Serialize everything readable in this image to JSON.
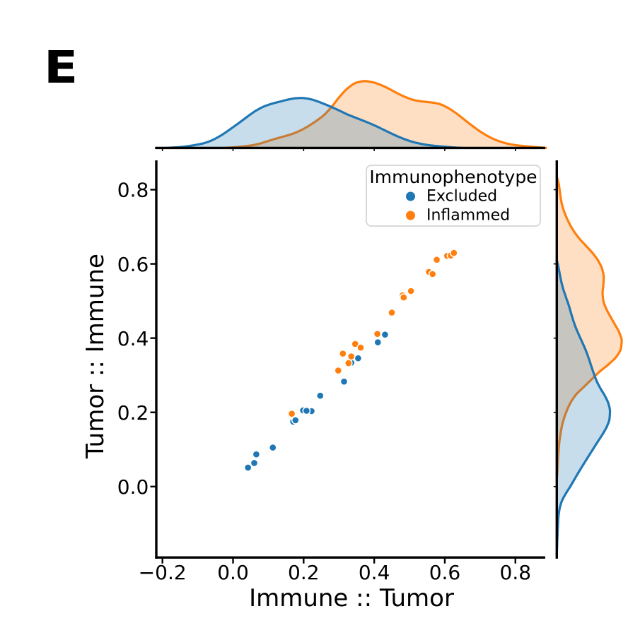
{
  "panel_label": "E",
  "colors": {
    "excluded": "#1f77b4",
    "inflammed": "#ff7f0e",
    "axis": "#000000",
    "fill_opacity": 0.25,
    "legend_border": "#d9d9d9",
    "legend_background": "#ffffff",
    "background": "#ffffff",
    "text": "#000000"
  },
  "chart_data": {
    "type": "scatter",
    "subtype": "jointplot_scatter_with_marginal_kde",
    "xlabel": "Immune :: Tumor",
    "ylabel": "Tumor :: Immune",
    "xlim": [
      -0.2174,
      0.8846
    ],
    "ylim": [
      -0.1911,
      0.879
    ],
    "x_ticks": [
      -0.2,
      0.0,
      0.2,
      0.4,
      0.6,
      0.8
    ],
    "x_tick_labels": [
      "−0.2",
      "0.0",
      "0.2",
      "0.4",
      "0.6",
      "0.8"
    ],
    "y_ticks": [
      0.0,
      0.2,
      0.4,
      0.6,
      0.8
    ],
    "y_tick_labels": [
      "0.0",
      "0.2",
      "0.4",
      "0.6",
      "0.8"
    ],
    "grid": false,
    "legend": {
      "title": "Immunophenotype",
      "position": "upper right",
      "items": [
        {
          "label": "Excluded",
          "color": "#1f77b4"
        },
        {
          "label": "Inflammed",
          "color": "#ff7f0e"
        }
      ]
    },
    "series": [
      {
        "name": "Excluded",
        "color": "#1f77b4",
        "points": [
          [
            0.0425,
            0.0512
          ],
          [
            0.0601,
            0.0636
          ],
          [
            0.0659,
            0.0868
          ],
          [
            0.1128,
            0.1051
          ],
          [
            0.1705,
            0.1749
          ],
          [
            0.1769,
            0.1787
          ],
          [
            0.1986,
            0.2054
          ],
          [
            0.2224,
            0.2033
          ],
          [
            0.2082,
            0.2043
          ],
          [
            0.2471,
            0.2448
          ],
          [
            0.3146,
            0.2829
          ],
          [
            0.3352,
            0.3336
          ],
          [
            0.3544,
            0.3457
          ],
          [
            0.4103,
            0.3886
          ],
          [
            0.4306,
            0.4095
          ]
        ]
      },
      {
        "name": "Inflammed",
        "color": "#ff7f0e",
        "points": [
          [
            0.1665,
            0.1962
          ],
          [
            0.2982,
            0.3125
          ],
          [
            0.3112,
            0.3582
          ],
          [
            0.3272,
            0.3326
          ],
          [
            0.3351,
            0.3506
          ],
          [
            0.3461,
            0.3843
          ],
          [
            0.3617,
            0.3744
          ],
          [
            0.4089,
            0.4113
          ],
          [
            0.4498,
            0.4687
          ],
          [
            0.4806,
            0.5152
          ],
          [
            0.4834,
            0.5095
          ],
          [
            0.5041,
            0.5268
          ],
          [
            0.5551,
            0.5782
          ],
          [
            0.5654,
            0.5725
          ],
          [
            0.5772,
            0.6111
          ],
          [
            0.6066,
            0.6216
          ],
          [
            0.6172,
            0.6227
          ],
          [
            0.6257,
            0.6294
          ]
        ]
      }
    ],
    "marginal_density": {
      "note": "kernel density estimate curves shown in the marginal panels; first value = position in display px, second = density height in display px",
      "top": {
        "excluded": [
          [
            235,
            0.0
          ],
          [
            246,
            0.6
          ],
          [
            256,
            1.3
          ],
          [
            267,
            2.7
          ],
          [
            278,
            4.5
          ],
          [
            288,
            6.6
          ],
          [
            299,
            10.5
          ],
          [
            310,
            16.2
          ],
          [
            321,
            23.3
          ],
          [
            331,
            30.4
          ],
          [
            342,
            38.4
          ],
          [
            353,
            46.7
          ],
          [
            363,
            53.4
          ],
          [
            374,
            59.0
          ],
          [
            385,
            62.7
          ],
          [
            395,
            65.3
          ],
          [
            406,
            68.1
          ],
          [
            417,
            70.2
          ],
          [
            427,
            70.7
          ],
          [
            438,
            69.2
          ],
          [
            449,
            65.9
          ],
          [
            460,
            61.6
          ],
          [
            470,
            57.4
          ],
          [
            481,
            52.3
          ],
          [
            492,
            47.1
          ],
          [
            502,
            43.1
          ],
          [
            513,
            38.8
          ],
          [
            524,
            34.3
          ],
          [
            534,
            29.8
          ],
          [
            545,
            24.5
          ],
          [
            556,
            19.2
          ],
          [
            566,
            14.8
          ],
          [
            577,
            10.6
          ],
          [
            588,
            7.4
          ],
          [
            599,
            5.1
          ],
          [
            609,
            3.6
          ],
          [
            620,
            2.4
          ],
          [
            631,
            1.5
          ],
          [
            641,
            0.7
          ],
          [
            652,
            0.0
          ]
        ],
        "inflammed": [
          [
            318,
            0.0
          ],
          [
            330,
            0.8
          ],
          [
            341,
            1.8
          ],
          [
            353,
            3.2
          ],
          [
            365,
            5.5
          ],
          [
            376,
            8.8
          ],
          [
            388,
            12.5
          ],
          [
            399,
            15.6
          ],
          [
            411,
            19.1
          ],
          [
            423,
            23.8
          ],
          [
            434,
            29.7
          ],
          [
            446,
            37.4
          ],
          [
            458,
            46.5
          ],
          [
            469,
            58.2
          ],
          [
            481,
            73.5
          ],
          [
            493,
            85.6
          ],
          [
            504,
            92.4
          ],
          [
            516,
            94.6
          ],
          [
            528,
            92.7
          ],
          [
            539,
            88.9
          ],
          [
            551,
            83.2
          ],
          [
            562,
            77.3
          ],
          [
            574,
            71.7
          ],
          [
            586,
            67.6
          ],
          [
            597,
            65.7
          ],
          [
            609,
            64.5
          ],
          [
            621,
            62.3
          ],
          [
            632,
            57.5
          ],
          [
            644,
            49.8
          ],
          [
            656,
            40.5
          ],
          [
            667,
            31.9
          ],
          [
            679,
            23.3
          ],
          [
            691,
            16.0
          ],
          [
            702,
            10.9
          ],
          [
            714,
            7.0
          ],
          [
            725,
            4.6
          ],
          [
            737,
            3.0
          ],
          [
            749,
            1.9
          ],
          [
            760,
            1.0
          ],
          [
            772,
            0.0
          ]
        ]
      },
      "right": {
        "excluded": [
          [
            368,
            0.0
          ],
          [
            379,
            2.5
          ],
          [
            389,
            4.4
          ],
          [
            400,
            6.7
          ],
          [
            411,
            9.7
          ],
          [
            421,
            13.1
          ],
          [
            432,
            16.9
          ],
          [
            443,
            20.1
          ],
          [
            454,
            23.4
          ],
          [
            464,
            27.0
          ],
          [
            475,
            31.7
          ],
          [
            486,
            36.7
          ],
          [
            496,
            41.0
          ],
          [
            507,
            45.1
          ],
          [
            518,
            48.7
          ],
          [
            528,
            52.1
          ],
          [
            539,
            56.2
          ],
          [
            550,
            61.8
          ],
          [
            560,
            67.8
          ],
          [
            571,
            72.9
          ],
          [
            582,
            75.2
          ],
          [
            593,
            74.5
          ],
          [
            603,
            71.2
          ],
          [
            614,
            65.2
          ],
          [
            625,
            58.1
          ],
          [
            635,
            51.8
          ],
          [
            646,
            44.8
          ],
          [
            657,
            37.9
          ],
          [
            667,
            31.8
          ],
          [
            678,
            25.3
          ],
          [
            689,
            18.9
          ],
          [
            699,
            12.6
          ],
          [
            710,
            6.9
          ],
          [
            721,
            3.8
          ],
          [
            732,
            2.3
          ],
          [
            742,
            1.7
          ],
          [
            753,
            1.2
          ],
          [
            764,
            0.7
          ],
          [
            774,
            0.4
          ],
          [
            785,
            0.0
          ]
        ],
        "inflammed": [
          [
            250,
            0.0
          ],
          [
            261,
            2.9
          ],
          [
            272,
            4.4
          ],
          [
            283,
            6.0
          ],
          [
            294,
            8.6
          ],
          [
            305,
            12.5
          ],
          [
            316,
            17.6
          ],
          [
            327,
            23.9
          ],
          [
            338,
            32.1
          ],
          [
            349,
            42.3
          ],
          [
            360,
            52.1
          ],
          [
            371,
            59.7
          ],
          [
            382,
            64.5
          ],
          [
            393,
            66.4
          ],
          [
            404,
            65.8
          ],
          [
            415,
            64.8
          ],
          [
            426,
            65.9
          ],
          [
            437,
            69.9
          ],
          [
            448,
            75.7
          ],
          [
            459,
            82.0
          ],
          [
            471,
            88.4
          ],
          [
            482,
            91.8
          ],
          [
            493,
            90.7
          ],
          [
            504,
            85.0
          ],
          [
            515,
            74.1
          ],
          [
            526,
            60.7
          ],
          [
            537,
            49.3
          ],
          [
            548,
            38.0
          ],
          [
            559,
            26.9
          ],
          [
            570,
            19.5
          ],
          [
            581,
            14.3
          ],
          [
            592,
            10.3
          ],
          [
            603,
            7.3
          ],
          [
            614,
            5.3
          ],
          [
            625,
            3.7
          ],
          [
            636,
            2.7
          ],
          [
            647,
            1.9
          ],
          [
            658,
            1.3
          ],
          [
            669,
            0.7
          ],
          [
            680,
            0.0
          ]
        ]
      }
    }
  }
}
